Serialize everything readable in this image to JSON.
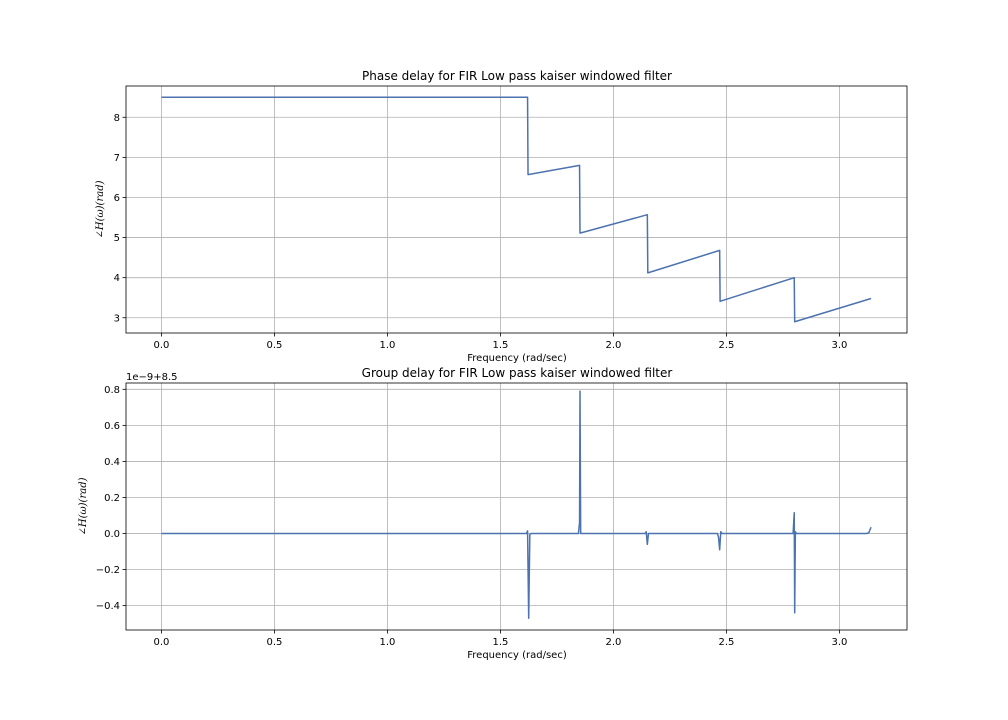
{
  "chart_data": [
    {
      "type": "line",
      "title": "Phase delay for FIR Low pass kaiser windowed filter",
      "xlabel": "Frequency (rad/sec)",
      "ylabel": "∠H(ω)(rad)",
      "xlim": [
        -0.157,
        3.299
      ],
      "ylim": [
        2.62,
        8.78
      ],
      "xticks": [
        0.0,
        0.5,
        1.0,
        1.5,
        2.0,
        2.5,
        3.0
      ],
      "xtick_labels": [
        "0.0",
        "0.5",
        "1.0",
        "1.5",
        "2.0",
        "2.5",
        "3.0"
      ],
      "yticks": [
        3,
        4,
        5,
        6,
        7,
        8
      ],
      "ytick_labels": [
        "3",
        "4",
        "5",
        "6",
        "7",
        "8"
      ],
      "grid": true,
      "series": [
        {
          "color": "#4c72b0",
          "x": [
            0.0,
            1.62,
            1.622,
            1.85,
            1.852,
            2.15,
            2.152,
            2.47,
            2.472,
            2.8,
            2.802,
            3.14
          ],
          "y": [
            8.5,
            8.5,
            6.57,
            6.8,
            5.11,
            5.57,
            4.12,
            4.68,
            3.41,
            4.0,
            2.9,
            3.48
          ]
        }
      ]
    },
    {
      "type": "line",
      "title": "Group delay for FIR Low pass kaiser windowed filter",
      "xlabel": "Frequency (rad/sec)",
      "ylabel": "∠H(ω)(rad)",
      "offset_text": "1e−9+8.5",
      "xlim": [
        -0.157,
        3.299
      ],
      "ylim": [
        -0.535,
        0.835
      ],
      "xticks": [
        0.0,
        0.5,
        1.0,
        1.5,
        2.0,
        2.5,
        3.0
      ],
      "xtick_labels": [
        "0.0",
        "0.5",
        "1.0",
        "1.5",
        "2.0",
        "2.5",
        "3.0"
      ],
      "yticks": [
        -0.4,
        -0.2,
        0.0,
        0.2,
        0.4,
        0.6,
        0.8
      ],
      "ytick_labels": [
        "−0.4",
        "−0.2",
        "0.0",
        "0.2",
        "0.4",
        "0.6",
        "0.8"
      ],
      "grid": true,
      "series": [
        {
          "color": "#4c72b0",
          "x": [
            0.0,
            1.615,
            1.62,
            1.625,
            1.63,
            1.635,
            1.845,
            1.85,
            1.852,
            1.855,
            1.86,
            2.14,
            2.145,
            2.15,
            2.155,
            2.16,
            2.46,
            2.465,
            2.47,
            2.475,
            2.48,
            2.79,
            2.795,
            2.8,
            2.802,
            2.805,
            2.81,
            2.815,
            3.12,
            3.13,
            3.14
          ],
          "y": [
            0.0,
            0.0,
            0.015,
            -0.47,
            -0.005,
            0.0,
            0.0,
            0.06,
            0.79,
            0.0,
            0.0,
            0.0,
            0.01,
            -0.06,
            0.0,
            0.0,
            0.0,
            -0.02,
            -0.09,
            0.01,
            0.0,
            0.0,
            0.0,
            0.115,
            -0.44,
            0.01,
            0.0,
            0.0,
            0.0,
            0.005,
            0.035
          ]
        }
      ]
    }
  ]
}
